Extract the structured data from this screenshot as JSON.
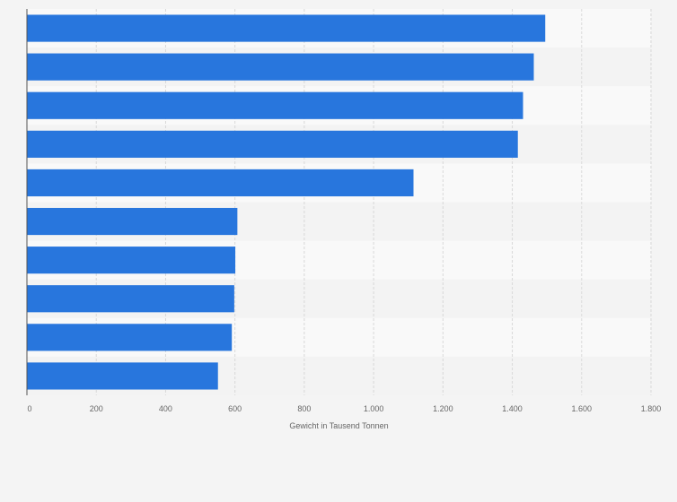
{
  "chart_data": {
    "type": "bar",
    "orientation": "horizontal",
    "categories": [
      "",
      "",
      "",
      "",
      "",
      "",
      "",
      "",
      "",
      ""
    ],
    "values": [
      1495,
      1462,
      1431,
      1416,
      1115,
      607,
      601,
      598,
      591,
      551
    ],
    "xlabel": "Gewicht in Tausend Tonnen",
    "ylabel": "",
    "xlim": [
      0,
      1800
    ],
    "ticks": [
      0,
      200,
      400,
      600,
      800,
      1000,
      1200,
      1400,
      1600,
      1800
    ],
    "tick_labels": [
      "0",
      "200",
      "400",
      "600",
      "800",
      "1.000",
      "1.200",
      "1.400",
      "1.600",
      "1.800"
    ],
    "grid": true,
    "legend": "none",
    "colors": {
      "bar": "#2876dd",
      "band_light": "#f9f9f9",
      "band_dark": "#f3f3f3",
      "gridline": "#d8d8d8",
      "axis": "#555555"
    }
  }
}
